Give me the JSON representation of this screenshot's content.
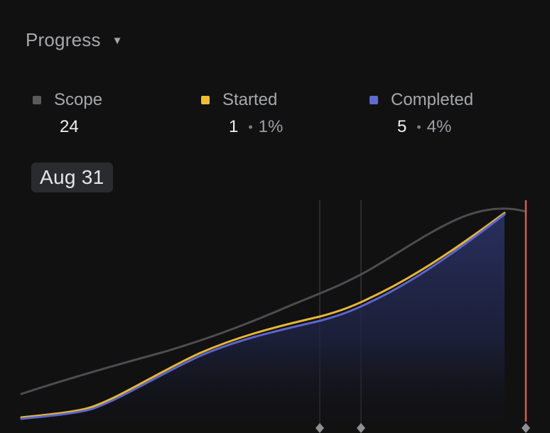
{
  "header": {
    "title": "Progress",
    "caret": "▼"
  },
  "stats": [
    {
      "id": "scope",
      "label": "Scope",
      "count": "24",
      "percent": "",
      "color": "#5a5a5d"
    },
    {
      "id": "started",
      "label": "Started",
      "count": "1",
      "percent": "1%",
      "color": "#f0be2e"
    },
    {
      "id": "completed",
      "label": "Completed",
      "count": "5",
      "percent": "4%",
      "color": "#5e6ad2"
    }
  ],
  "date_tag": "Aug 31",
  "colors": {
    "background": "#111112",
    "scope_line": "#4d4d50",
    "started_line": "#e8b630",
    "completed_line": "#5b66d0",
    "completed_fill": "#232a55",
    "today_marker": "#dd5a4d",
    "guide_line": "#2b2b2e",
    "milestone_diamond": "#909094"
  }
}
